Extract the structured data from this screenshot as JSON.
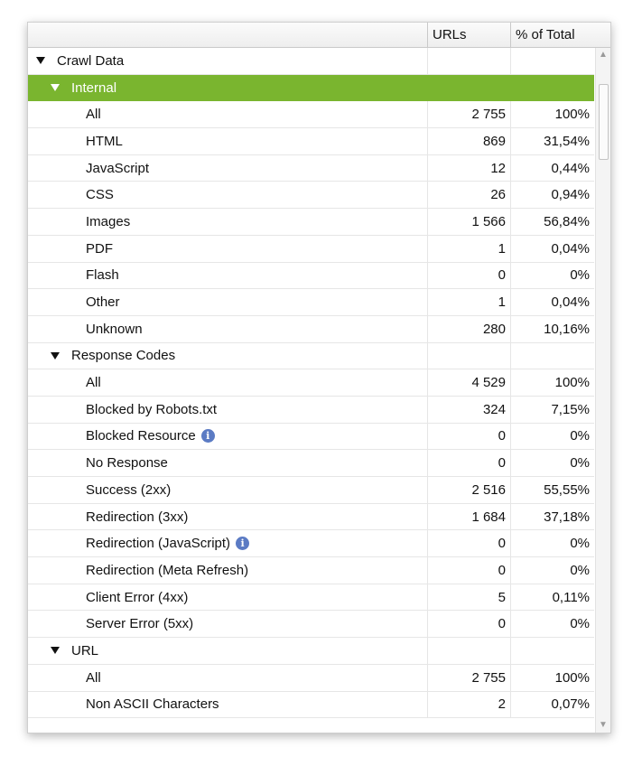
{
  "columns": {
    "name": "",
    "urls": "URLs",
    "pct": "% of Total"
  },
  "rows": [
    {
      "label": "Crawl Data",
      "urls": "",
      "pct": "",
      "level": 0,
      "expander": true
    },
    {
      "label": "Internal",
      "urls": "",
      "pct": "",
      "level": 1,
      "expander": true,
      "selected": true
    },
    {
      "label": "All",
      "urls": "2 755",
      "pct": "100%",
      "level": 2
    },
    {
      "label": "HTML",
      "urls": "869",
      "pct": "31,54%",
      "level": 2
    },
    {
      "label": "JavaScript",
      "urls": "12",
      "pct": "0,44%",
      "level": 2
    },
    {
      "label": "CSS",
      "urls": "26",
      "pct": "0,94%",
      "level": 2
    },
    {
      "label": "Images",
      "urls": "1 566",
      "pct": "56,84%",
      "level": 2
    },
    {
      "label": "PDF",
      "urls": "1",
      "pct": "0,04%",
      "level": 2
    },
    {
      "label": "Flash",
      "urls": "0",
      "pct": "0%",
      "level": 2
    },
    {
      "label": "Other",
      "urls": "1",
      "pct": "0,04%",
      "level": 2
    },
    {
      "label": "Unknown",
      "urls": "280",
      "pct": "10,16%",
      "level": 2
    },
    {
      "label": "Response Codes",
      "urls": "",
      "pct": "",
      "level": 1,
      "expander": true
    },
    {
      "label": "All",
      "urls": "4 529",
      "pct": "100%",
      "level": 2
    },
    {
      "label": "Blocked by Robots.txt",
      "urls": "324",
      "pct": "7,15%",
      "level": 2
    },
    {
      "label": "Blocked Resource",
      "urls": "0",
      "pct": "0%",
      "level": 2,
      "info": true
    },
    {
      "label": "No Response",
      "urls": "0",
      "pct": "0%",
      "level": 2
    },
    {
      "label": "Success (2xx)",
      "urls": "2 516",
      "pct": "55,55%",
      "level": 2
    },
    {
      "label": "Redirection (3xx)",
      "urls": "1 684",
      "pct": "37,18%",
      "level": 2
    },
    {
      "label": "Redirection (JavaScript)",
      "urls": "0",
      "pct": "0%",
      "level": 2,
      "info": true
    },
    {
      "label": "Redirection (Meta Refresh)",
      "urls": "0",
      "pct": "0%",
      "level": 2
    },
    {
      "label": "Client Error (4xx)",
      "urls": "5",
      "pct": "0,11%",
      "level": 2
    },
    {
      "label": "Server Error (5xx)",
      "urls": "0",
      "pct": "0%",
      "level": 2
    },
    {
      "label": "URL",
      "urls": "",
      "pct": "",
      "level": 1,
      "expander": true
    },
    {
      "label": "All",
      "urls": "2 755",
      "pct": "100%",
      "level": 2
    },
    {
      "label": "Non ASCII Characters",
      "urls": "2",
      "pct": "0,07%",
      "level": 2
    }
  ],
  "icons": {
    "expander": "triangle-down-icon",
    "info": "info-icon",
    "scroll_up": "chevron-up-icon",
    "scroll_down": "chevron-down-icon"
  },
  "colors": {
    "selected_row": "#7ab52f",
    "info_icon": "#5b7bc4"
  }
}
